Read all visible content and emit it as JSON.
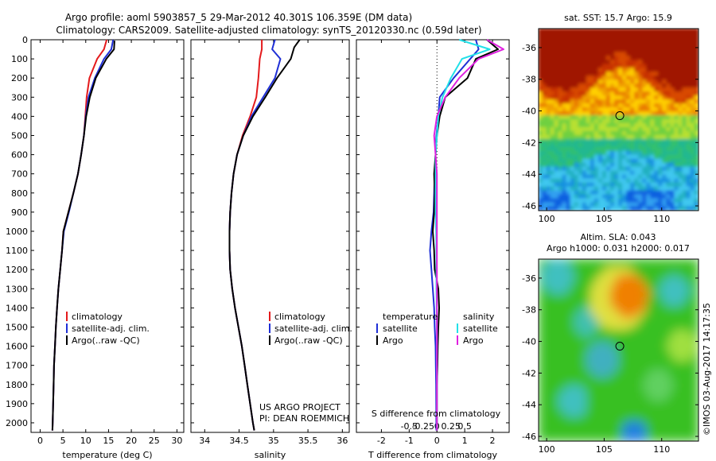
{
  "header": {
    "line1": "Argo profile: aoml 5903857_5 29-Mar-2012 40.301S 106.359E (DM data)",
    "line2": "Climatology: CARS2009. Satellite-adjusted climatology: synTS_20120330.nc (0.59d later)"
  },
  "colors": {
    "climatology": "#e41a1c",
    "satellite": "#1f2fd6",
    "argo": "#000000",
    "salinity_satellite": "#22e0e8",
    "salinity_argo": "#e020e0"
  },
  "chart_data": [
    {
      "type": "line",
      "name": "temperature-panel",
      "xlabel": "temperature (deg C)",
      "ylabel": "",
      "xlim": [
        -2,
        31.5
      ],
      "ylim": [
        2050,
        0
      ],
      "xticks": [
        "0",
        "5",
        "10",
        "15",
        "20",
        "25",
        "30"
      ],
      "yticks": [
        "0",
        "100",
        "200",
        "300",
        "400",
        "500",
        "600",
        "700",
        "800",
        "900",
        "1000",
        "1100",
        "1200",
        "1300",
        "1400",
        "1500",
        "1600",
        "1700",
        "1800",
        "1900",
        "2000"
      ],
      "legend": [
        "climatology",
        "satellite-adj. clim.",
        "Argo(..raw -QC)"
      ],
      "legend_position": "bottom-right",
      "series": [
        {
          "name": "climatology",
          "color": "#e41a1c",
          "x": [
            14.6,
            14.0,
            12.5,
            10.8,
            10.2,
            9.9,
            9.6,
            9.0,
            8.3,
            7.3,
            6.2,
            5.1,
            4.8,
            4.4,
            4.0,
            3.7,
            3.45,
            3.25,
            3.05,
            2.95,
            2.85,
            2.75,
            2.7
          ],
          "y": [
            0,
            50,
            100,
            200,
            300,
            400,
            500,
            600,
            700,
            800,
            900,
            1000,
            1100,
            1200,
            1300,
            1400,
            1500,
            1600,
            1700,
            1800,
            1900,
            2000,
            2040
          ]
        },
        {
          "name": "satellite-adj. clim.",
          "color": "#1f2fd6",
          "x": [
            16.0,
            15.6,
            14.0,
            12.0,
            10.6,
            10.0,
            9.6,
            9.0,
            8.3,
            7.3,
            6.3,
            5.2,
            4.8,
            4.4,
            4.0,
            3.7,
            3.45,
            3.25,
            3.05,
            2.95,
            2.85,
            2.75,
            2.7
          ],
          "y": [
            0,
            50,
            100,
            200,
            300,
            400,
            500,
            600,
            700,
            800,
            900,
            1000,
            1100,
            1200,
            1300,
            1400,
            1500,
            1600,
            1700,
            1800,
            1900,
            2000,
            2040
          ]
        },
        {
          "name": "Argo(..raw -QC)",
          "color": "#000000",
          "x": [
            16.3,
            16.2,
            14.5,
            12.2,
            10.9,
            10.1,
            9.6,
            9.0,
            8.3,
            7.3,
            6.2,
            5.1,
            4.8,
            4.4,
            4.0,
            3.7,
            3.45,
            3.25,
            3.05,
            2.95,
            2.85,
            2.75,
            2.7
          ],
          "y": [
            5,
            50,
            100,
            200,
            300,
            400,
            500,
            600,
            700,
            800,
            900,
            1000,
            1100,
            1200,
            1300,
            1400,
            1500,
            1600,
            1700,
            1800,
            1900,
            2000,
            2040
          ]
        }
      ]
    },
    {
      "type": "line",
      "name": "salinity-panel",
      "xlabel": "salinity",
      "xlim": [
        33.8,
        36.1
      ],
      "ylim": [
        2050,
        0
      ],
      "xticks": [
        "34",
        "34.5",
        "35",
        "35.5",
        "36"
      ],
      "legend": [
        "climatology",
        "satellite-adj. clim.",
        "Argo(..raw -QC)"
      ],
      "legend_position": "bottom-right",
      "annotation": [
        "US ARGO PROJECT",
        "PI: DEAN ROEMMICH"
      ],
      "series": [
        {
          "name": "climatology",
          "color": "#e41a1c",
          "x": [
            34.83,
            34.83,
            34.8,
            34.78,
            34.75,
            34.66,
            34.55,
            34.47,
            34.42,
            34.39,
            34.37,
            34.36,
            34.36,
            34.37,
            34.4,
            34.44,
            34.49,
            34.54,
            34.58,
            34.62,
            34.66,
            34.7,
            34.72
          ],
          "y": [
            0,
            50,
            100,
            200,
            300,
            400,
            500,
            600,
            700,
            800,
            900,
            1000,
            1100,
            1200,
            1300,
            1400,
            1500,
            1600,
            1700,
            1800,
            1900,
            2000,
            2040
          ]
        },
        {
          "name": "satellite-adj. clim.",
          "color": "#1f2fd6",
          "x": [
            35.02,
            34.98,
            35.1,
            35.02,
            34.85,
            34.68,
            34.56,
            34.47,
            34.42,
            34.39,
            34.37,
            34.36,
            34.36,
            34.37,
            34.4,
            34.44,
            34.49,
            34.54,
            34.58,
            34.62,
            34.66,
            34.7,
            34.72
          ],
          "y": [
            0,
            50,
            100,
            200,
            300,
            400,
            500,
            600,
            700,
            800,
            900,
            1000,
            1100,
            1200,
            1300,
            1400,
            1500,
            1600,
            1700,
            1800,
            1900,
            2000,
            2040
          ]
        },
        {
          "name": "Argo(..raw -QC)",
          "color": "#000000",
          "x": [
            35.38,
            35.3,
            35.25,
            35.05,
            34.88,
            34.7,
            34.56,
            34.47,
            34.42,
            34.39,
            34.37,
            34.36,
            34.36,
            34.37,
            34.4,
            34.44,
            34.49,
            34.54,
            34.58,
            34.62,
            34.66,
            34.7,
            34.72
          ],
          "y": [
            0,
            40,
            100,
            200,
            300,
            400,
            500,
            600,
            700,
            800,
            900,
            1000,
            1100,
            1200,
            1300,
            1400,
            1500,
            1600,
            1700,
            1800,
            1900,
            2000,
            2040
          ]
        }
      ]
    },
    {
      "type": "line",
      "name": "difference-panel",
      "xlabel": "T difference from climatology",
      "xlabel_top": "S difference from climatology",
      "xlim": [
        -2.9,
        2.6
      ],
      "ylim": [
        2050,
        0
      ],
      "xticks": [
        "-2",
        "-1",
        "0",
        "1",
        "2"
      ],
      "xticks_top": [
        "-0.5",
        "-0.25",
        "0",
        "0.25",
        "0.5"
      ],
      "legend_groups": [
        {
          "title": "temperature",
          "items": [
            "satellite",
            "Argo"
          ]
        },
        {
          "title": "salinity",
          "items": [
            "satellite",
            "Argo"
          ]
        }
      ],
      "legend_position": "bottom",
      "series": [
        {
          "name": "temperature satellite",
          "color": "#1f2fd6",
          "x": [
            1.4,
            1.5,
            1.2,
            0.6,
            0.1,
            0.05,
            -0.02,
            -0.05,
            -0.08,
            -0.1,
            -0.12,
            -0.2,
            -0.25,
            -0.2,
            -0.15,
            -0.1,
            -0.08,
            -0.05,
            -0.04,
            -0.03,
            -0.02
          ],
          "y": [
            0,
            50,
            100,
            200,
            300,
            400,
            500,
            600,
            700,
            800,
            900,
            1000,
            1100,
            1200,
            1300,
            1400,
            1500,
            1600,
            1700,
            1800,
            2040
          ]
        },
        {
          "name": "temperature Argo",
          "color": "#000000",
          "x": [
            1.8,
            2.2,
            1.4,
            1.1,
            0.3,
            0.1,
            0.0,
            -0.05,
            -0.1,
            -0.08,
            -0.1,
            -0.15,
            -0.1,
            -0.08,
            0.05,
            0.08,
            0.05,
            0.03,
            0.02,
            0.0,
            0.0
          ],
          "y": [
            0,
            50,
            100,
            200,
            300,
            400,
            500,
            600,
            700,
            800,
            900,
            1000,
            1100,
            1200,
            1300,
            1400,
            1500,
            1600,
            1700,
            1800,
            2040
          ]
        },
        {
          "name": "salinity satellite",
          "color": "#22e0e8",
          "x": [
            0.8,
            1.9,
            0.9,
            0.5,
            0.2,
            0.05,
            0.0,
            -0.05,
            -0.05,
            -0.05,
            -0.05,
            -0.03,
            -0.02,
            -0.02,
            -0.02,
            -0.01,
            0.0,
            0.0,
            0.0,
            0.0,
            0.0
          ],
          "y": [
            0,
            50,
            100,
            200,
            300,
            400,
            500,
            600,
            700,
            800,
            900,
            1000,
            1100,
            1200,
            1300,
            1400,
            1500,
            1600,
            1700,
            1800,
            2040
          ]
        },
        {
          "name": "salinity Argo",
          "color": "#e020e0",
          "x": [
            1.8,
            2.4,
            1.5,
            0.8,
            0.3,
            0.0,
            -0.1,
            -0.05,
            0.0,
            0.0,
            0.0,
            0.0,
            0.0,
            0.0,
            0.0,
            0.0,
            0.0,
            0.0,
            0.0,
            0.0,
            0.0
          ],
          "y": [
            0,
            50,
            100,
            200,
            300,
            400,
            500,
            600,
            700,
            800,
            900,
            1000,
            1100,
            1200,
            1300,
            1400,
            1500,
            1600,
            1700,
            1800,
            2040
          ]
        }
      ]
    },
    {
      "type": "heatmap",
      "name": "sst-map",
      "title": "sat. SST: 15.7  Argo: 15.9",
      "xlim": [
        99.3,
        113.2
      ],
      "ylim": [
        -46.3,
        -34.8
      ],
      "xticks": [
        "100",
        "105",
        "110"
      ],
      "yticks": [
        "-36",
        "-38",
        "-40",
        "-42",
        "-44",
        "-46"
      ],
      "marker": {
        "lon": 106.36,
        "lat": -40.3
      }
    },
    {
      "type": "heatmap",
      "name": "sla-map",
      "title_lines": [
        "Altim. SLA: 0.043",
        "Argo h1000: 0.031  h2000: 0.017"
      ],
      "xlim": [
        99.3,
        113.2
      ],
      "ylim": [
        -46.3,
        -34.8
      ],
      "xticks": [
        "100",
        "105",
        "110"
      ],
      "yticks": [
        "-36",
        "-38",
        "-40",
        "-42",
        "-44",
        "-46"
      ],
      "marker": {
        "lon": 106.36,
        "lat": -40.3
      }
    }
  ],
  "credit": "©IMOS 03-Aug-2017 14:17:35"
}
